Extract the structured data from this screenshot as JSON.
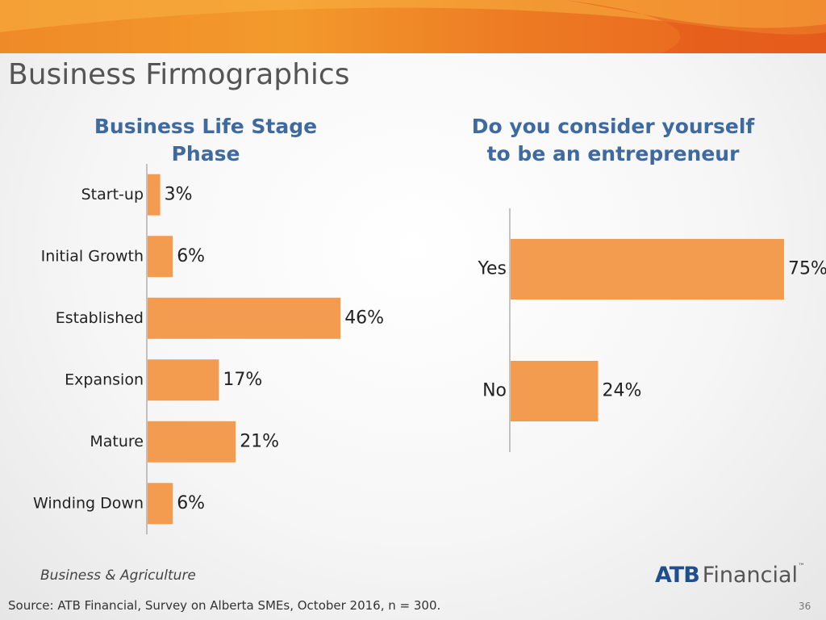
{
  "page": {
    "title": "Business Firmographics",
    "footer_org": "Business & Agriculture",
    "logo_text": "ATB Financial",
    "source": "Source:  ATB Financial, Survey on Alberta SMEs, October 2016, n = 300.",
    "page_number": "36"
  },
  "colors": {
    "bar": "#f39b4e",
    "banner_start": "#ef8a28",
    "banner_end": "#e9601c",
    "title": "#3f6aa0",
    "axis": "#8c8c8c"
  },
  "chart_data": [
    {
      "type": "bar",
      "orientation": "horizontal",
      "title": "Business Life Stage\nPhase",
      "categories": [
        "Start-up",
        "Initial Growth",
        "Established",
        "Expansion",
        "Mature",
        "Winding Down"
      ],
      "values": [
        3,
        6,
        46,
        17,
        21,
        6
      ],
      "value_labels": [
        "3%",
        "6%",
        "46%",
        "17%",
        "21%",
        "6%"
      ],
      "unit": "%",
      "xlim": [
        0,
        100
      ],
      "grid": false,
      "legend": "none"
    },
    {
      "type": "bar",
      "orientation": "horizontal",
      "title": "Do you consider yourself\nto be an entrepreneur",
      "categories": [
        "Yes",
        "No"
      ],
      "values": [
        75,
        24
      ],
      "value_labels": [
        "75%",
        "24%"
      ],
      "unit": "%",
      "xlim": [
        0,
        75
      ],
      "grid": false,
      "legend": "none"
    }
  ]
}
